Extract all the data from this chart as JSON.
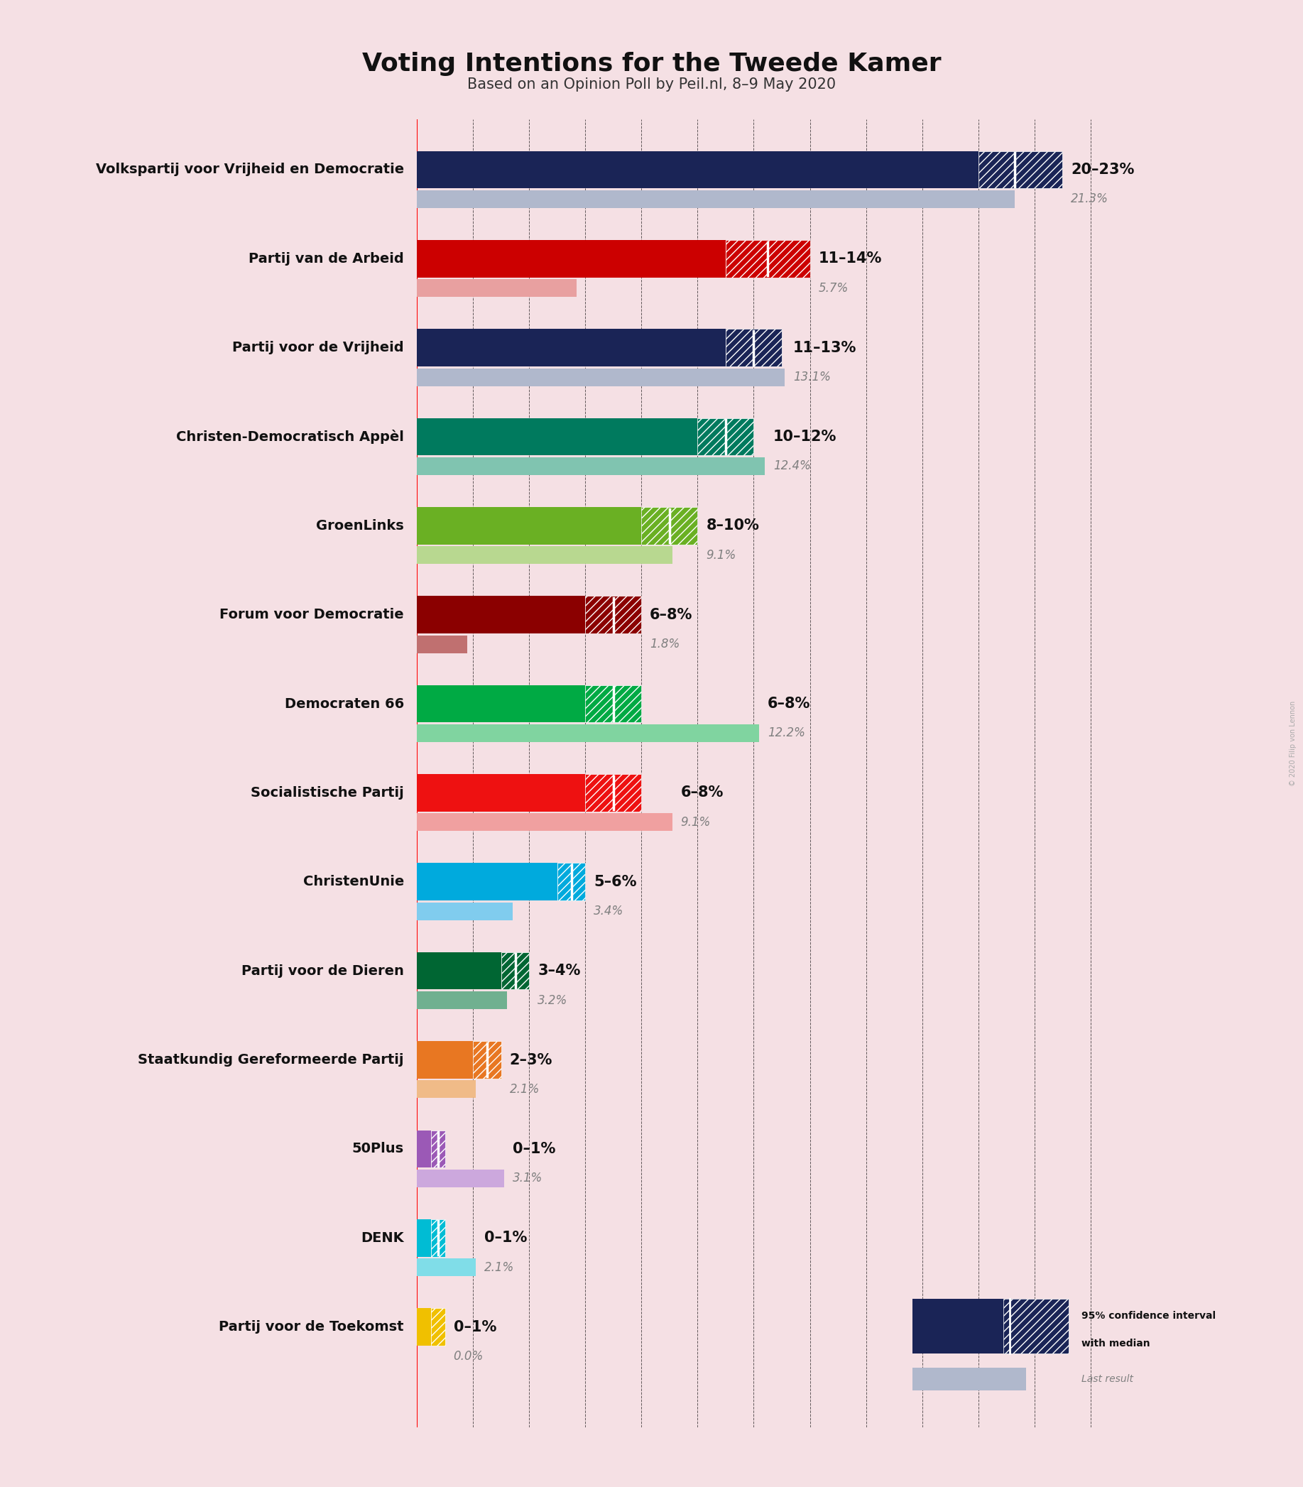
{
  "title": "Voting Intentions for the Tweede Kamer",
  "subtitle": "Based on an Opinion Poll by Peil.nl, 8–9 May 2020",
  "background_color": "#f5e0e4",
  "parties": [
    {
      "name": "Volkspartij voor Vrijheid en Democratie",
      "ci_low": 20.0,
      "ci_high": 23.0,
      "median": 21.3,
      "last_result": 21.3,
      "color": "#1a2456",
      "last_color": "#b0b8cc",
      "label": "20–23%",
      "label2": "21.3%"
    },
    {
      "name": "Partij van de Arbeid",
      "ci_low": 11.0,
      "ci_high": 14.0,
      "median": 12.5,
      "last_result": 5.7,
      "color": "#cc0000",
      "last_color": "#e8a0a0",
      "label": "11–14%",
      "label2": "5.7%"
    },
    {
      "name": "Partij voor de Vrijheid",
      "ci_low": 11.0,
      "ci_high": 13.0,
      "median": 12.0,
      "last_result": 13.1,
      "color": "#1a2456",
      "last_color": "#b0b8cc",
      "label": "11–13%",
      "label2": "13.1%"
    },
    {
      "name": "Christen-Democratisch Appèl",
      "ci_low": 10.0,
      "ci_high": 12.0,
      "median": 11.0,
      "last_result": 12.4,
      "color": "#007a5e",
      "last_color": "#80c4b0",
      "label": "10–12%",
      "label2": "12.4%"
    },
    {
      "name": "GroenLinks",
      "ci_low": 8.0,
      "ci_high": 10.0,
      "median": 9.0,
      "last_result": 9.1,
      "color": "#6ab023",
      "last_color": "#b8d890",
      "label": "8–10%",
      "label2": "9.1%"
    },
    {
      "name": "Forum voor Democratie",
      "ci_low": 6.0,
      "ci_high": 8.0,
      "median": 7.0,
      "last_result": 1.8,
      "color": "#8b0000",
      "last_color": "#c07070",
      "label": "6–8%",
      "label2": "1.8%"
    },
    {
      "name": "Democraten 66",
      "ci_low": 6.0,
      "ci_high": 8.0,
      "median": 7.0,
      "last_result": 12.2,
      "color": "#00aa44",
      "last_color": "#80d4a0",
      "label": "6–8%",
      "label2": "12.2%"
    },
    {
      "name": "Socialistische Partij",
      "ci_low": 6.0,
      "ci_high": 8.0,
      "median": 7.0,
      "last_result": 9.1,
      "color": "#ee1111",
      "last_color": "#f0a0a0",
      "label": "6–8%",
      "label2": "9.1%"
    },
    {
      "name": "ChristenUnie",
      "ci_low": 5.0,
      "ci_high": 6.0,
      "median": 5.5,
      "last_result": 3.4,
      "color": "#00aadd",
      "last_color": "#80ccee",
      "label": "5–6%",
      "label2": "3.4%"
    },
    {
      "name": "Partij voor de Dieren",
      "ci_low": 3.0,
      "ci_high": 4.0,
      "median": 3.5,
      "last_result": 3.2,
      "color": "#006633",
      "last_color": "#70b090",
      "label": "3–4%",
      "label2": "3.2%"
    },
    {
      "name": "Staatkundig Gereformeerde Partij",
      "ci_low": 2.0,
      "ci_high": 3.0,
      "median": 2.5,
      "last_result": 2.1,
      "color": "#e87722",
      "last_color": "#f0bb88",
      "label": "2–3%",
      "label2": "2.1%"
    },
    {
      "name": "50Plus",
      "ci_low": 0.5,
      "ci_high": 1.0,
      "median": 0.75,
      "last_result": 3.1,
      "color": "#9b59b6",
      "last_color": "#cca8dd",
      "label": "0–1%",
      "label2": "3.1%"
    },
    {
      "name": "DENK",
      "ci_low": 0.5,
      "ci_high": 1.0,
      "median": 0.75,
      "last_result": 2.1,
      "color": "#00bcd4",
      "last_color": "#80dde8",
      "label": "0–1%",
      "label2": "2.1%"
    },
    {
      "name": "Partij voor de Toekomst",
      "ci_low": 0.5,
      "ci_high": 1.0,
      "median": 0.0,
      "last_result": 0.0,
      "color": "#f0c000",
      "last_color": "#f8e080",
      "label": "0–1%",
      "label2": "0.0%"
    }
  ],
  "xlim": [
    0,
    26
  ],
  "gridline_positions": [
    0,
    2,
    4,
    6,
    8,
    10,
    12,
    14,
    16,
    18,
    20,
    22,
    24
  ]
}
